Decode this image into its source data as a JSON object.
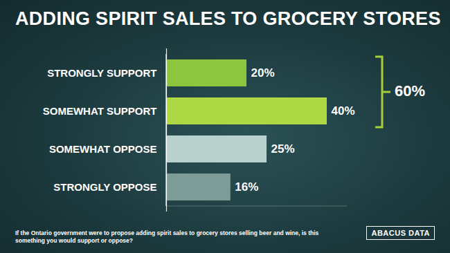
{
  "chart_data": {
    "type": "bar",
    "title": "ADDING SPIRIT SALES TO GROCERY STORES",
    "orientation": "horizontal",
    "categories": [
      "STRONGLY SUPPORT",
      "SOMEWHAT SUPPORT",
      "SOMEWHAT OPPOSE",
      "STRONGLY OPPOSE"
    ],
    "values": [
      20,
      40,
      25,
      16
    ],
    "value_labels": [
      "20%",
      "40%",
      "25%",
      "16%"
    ],
    "colors": [
      "#8cc63f",
      "#afd845",
      "#b9d1cd",
      "#7e9c97"
    ],
    "data_labels": true,
    "tick_labels": "y",
    "xlim": [
      0,
      45
    ],
    "annotations": [
      {
        "text": "60%",
        "categories": [
          "STRONGLY SUPPORT",
          "SOMEWHAT SUPPORT"
        ]
      }
    ],
    "caption": "If the Ontario government were to propose adding spirit sales to grocery stores selling beer and wine, is this something you would support or oppose?",
    "source": "ABACUS DATA"
  }
}
